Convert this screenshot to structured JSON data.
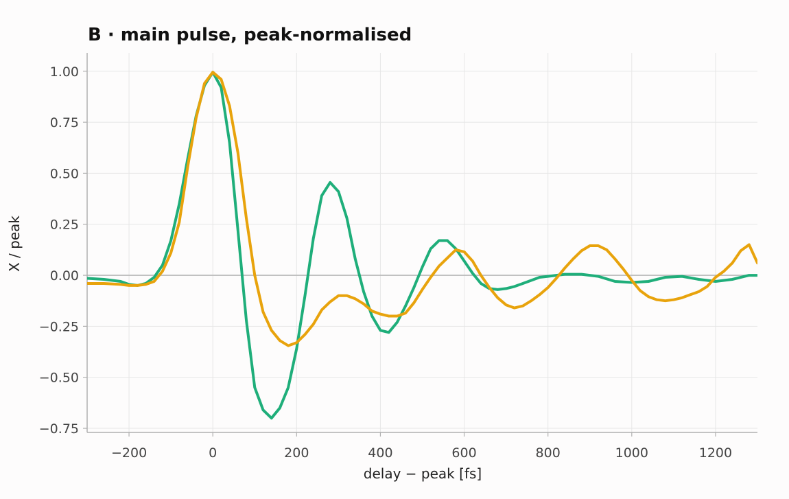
{
  "chart_data": {
    "type": "line",
    "title": "B · main pulse, peak-normalised",
    "xlabel": "delay − peak [fs]",
    "ylabel": "X / peak",
    "xlim": [
      -300,
      1300
    ],
    "ylim": [
      -0.77,
      1.09
    ],
    "xticks": [
      -200,
      0,
      200,
      400,
      600,
      800,
      1000,
      1200
    ],
    "xtick_labels": [
      "−200",
      "0",
      "200",
      "400",
      "600",
      "800",
      "1000",
      "1200"
    ],
    "yticks": [
      1.0,
      0.75,
      0.5,
      0.25,
      0.0,
      -0.25,
      -0.5,
      -0.75
    ],
    "ytick_labels": [
      "1.00",
      "0.75",
      "0.50",
      "0.25",
      "0.00",
      "−0.25",
      "−0.50",
      "−0.75"
    ],
    "grid": true,
    "zero_line": true,
    "series": [
      {
        "color": "#1fae7a",
        "x": [
          -300,
          -260,
          -220,
          -200,
          -180,
          -160,
          -140,
          -120,
          -100,
          -80,
          -60,
          -40,
          -20,
          0,
          20,
          40,
          60,
          80,
          100,
          120,
          140,
          160,
          180,
          200,
          220,
          240,
          260,
          280,
          300,
          320,
          340,
          360,
          380,
          400,
          420,
          440,
          460,
          480,
          500,
          520,
          540,
          560,
          580,
          600,
          620,
          640,
          660,
          680,
          700,
          720,
          740,
          760,
          780,
          800,
          840,
          880,
          920,
          960,
          1000,
          1040,
          1080,
          1120,
          1160,
          1200,
          1240,
          1280,
          1300
        ],
        "y": [
          -0.015,
          -0.02,
          -0.03,
          -0.045,
          -0.05,
          -0.04,
          -0.01,
          0.05,
          0.17,
          0.35,
          0.57,
          0.78,
          0.93,
          0.995,
          0.92,
          0.65,
          0.22,
          -0.22,
          -0.55,
          -0.66,
          -0.7,
          -0.65,
          -0.55,
          -0.36,
          -0.1,
          0.18,
          0.39,
          0.455,
          0.41,
          0.28,
          0.08,
          -0.08,
          -0.2,
          -0.27,
          -0.28,
          -0.23,
          -0.15,
          -0.06,
          0.04,
          0.13,
          0.17,
          0.17,
          0.13,
          0.07,
          0.01,
          -0.04,
          -0.065,
          -0.07,
          -0.065,
          -0.055,
          -0.04,
          -0.025,
          -0.01,
          -0.005,
          0.005,
          0.005,
          -0.005,
          -0.03,
          -0.035,
          -0.03,
          -0.01,
          -0.005,
          -0.02,
          -0.03,
          -0.02,
          0.0,
          0.0
        ]
      },
      {
        "color": "#e8a30c",
        "x": [
          -300,
          -260,
          -220,
          -200,
          -180,
          -160,
          -140,
          -120,
          -100,
          -80,
          -60,
          -40,
          -20,
          0,
          20,
          40,
          60,
          80,
          100,
          120,
          140,
          160,
          180,
          200,
          220,
          240,
          260,
          280,
          300,
          320,
          340,
          360,
          380,
          400,
          420,
          440,
          460,
          480,
          500,
          520,
          540,
          560,
          580,
          600,
          620,
          640,
          660,
          680,
          700,
          720,
          740,
          760,
          780,
          800,
          820,
          840,
          860,
          880,
          900,
          920,
          940,
          960,
          980,
          1000,
          1020,
          1040,
          1060,
          1080,
          1100,
          1120,
          1140,
          1160,
          1180,
          1200,
          1220,
          1240,
          1260,
          1280,
          1300
        ],
        "y": [
          -0.04,
          -0.04,
          -0.045,
          -0.05,
          -0.05,
          -0.045,
          -0.03,
          0.02,
          0.11,
          0.26,
          0.53,
          0.77,
          0.94,
          0.995,
          0.96,
          0.83,
          0.6,
          0.28,
          0.0,
          -0.18,
          -0.27,
          -0.32,
          -0.345,
          -0.33,
          -0.29,
          -0.24,
          -0.17,
          -0.13,
          -0.1,
          -0.1,
          -0.115,
          -0.14,
          -0.175,
          -0.19,
          -0.2,
          -0.2,
          -0.185,
          -0.135,
          -0.07,
          -0.01,
          0.045,
          0.085,
          0.125,
          0.115,
          0.07,
          0.0,
          -0.06,
          -0.11,
          -0.145,
          -0.16,
          -0.15,
          -0.125,
          -0.095,
          -0.06,
          -0.015,
          0.035,
          0.08,
          0.12,
          0.145,
          0.145,
          0.125,
          0.08,
          0.03,
          -0.025,
          -0.075,
          -0.105,
          -0.12,
          -0.125,
          -0.12,
          -0.11,
          -0.095,
          -0.08,
          -0.055,
          -0.01,
          0.02,
          0.06,
          0.12,
          0.15,
          0.06
        ]
      }
    ]
  }
}
